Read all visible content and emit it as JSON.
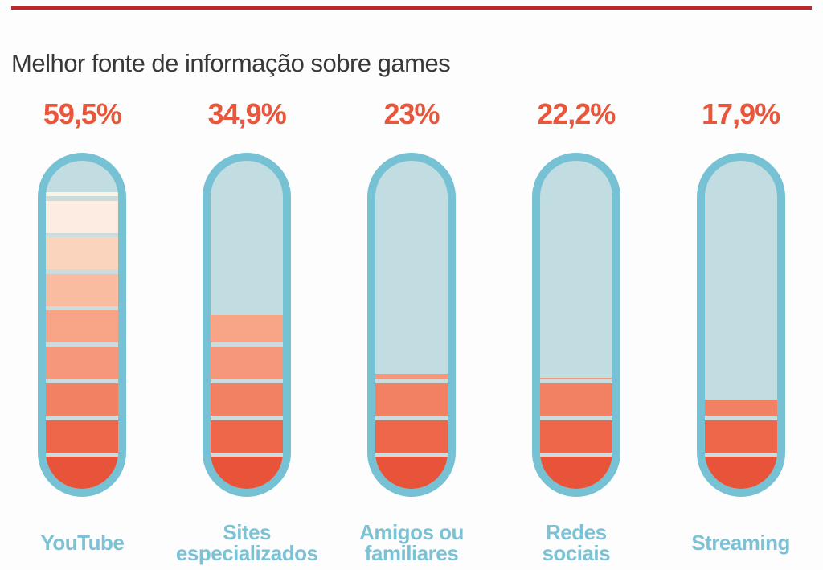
{
  "header": {
    "title": "Melhor fonte de informação sobre games"
  },
  "chart_data": {
    "type": "bar",
    "style": "segmented thermometer tubes, vertical fill proportional to percentage",
    "title": "Melhor fonte de informação sobre games",
    "categories": [
      "YouTube",
      "Sites especializados",
      "Amigos ou familiares",
      "Redes sociais",
      "Streaming"
    ],
    "values": [
      59.5,
      34.9,
      23.0,
      22.2,
      17.9
    ],
    "value_labels": [
      "59,5%",
      "34,9%",
      "23%",
      "22,2%",
      "17,9%"
    ],
    "unit": "%",
    "ylim": [
      0,
      100
    ],
    "legend": "none",
    "grid": "off"
  },
  "items": [
    {
      "label": "YouTube",
      "label_lines": [
        "YouTube"
      ],
      "value_label": "59,5%",
      "pct": 59.5
    },
    {
      "label": "Sites especializados",
      "label_lines": [
        "Sites",
        "especializados"
      ],
      "value_label": "34,9%",
      "pct": 34.9
    },
    {
      "label": "Amigos ou familiares",
      "label_lines": [
        "Amigos ou",
        "familiares"
      ],
      "value_label": "23%",
      "pct": 23.0
    },
    {
      "label": "Redes sociais",
      "label_lines": [
        "Redes",
        "sociais"
      ],
      "value_label": "22,2%",
      "pct": 22.2
    },
    {
      "label": "Streaming",
      "label_lines": [
        "Streaming"
      ],
      "value_label": "17,9%",
      "pct": 17.9
    }
  ],
  "colors": {
    "top_rule": "#c2262d",
    "title_text": "#383838",
    "value_text": "#e8563c",
    "category_text": "#7cc2d5",
    "tube_border": "#77c1d4",
    "tube_interior": "#c2dde2",
    "separator": "#ccdbdb",
    "bands_bottom_to_top": [
      "#e85439",
      "#ef674a",
      "#f28062",
      "#f5977b",
      "#f7a487",
      "#f9bca1",
      "#fbd4bd",
      "#fcece2",
      "#faf3e3"
    ]
  }
}
